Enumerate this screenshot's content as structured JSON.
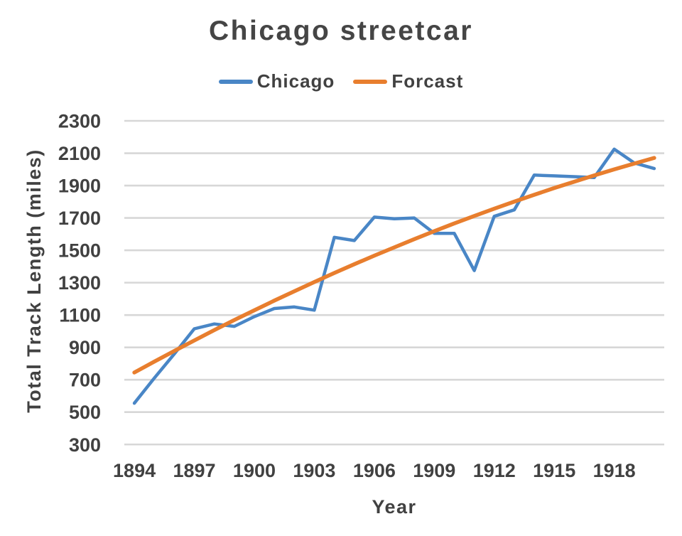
{
  "title": "Chicago streetcar",
  "legend": {
    "items": [
      {
        "label": "Chicago",
        "color": "#4986C6"
      },
      {
        "label": "Forcast",
        "color": "#E87E2E"
      }
    ]
  },
  "colors": {
    "background": "#ffffff",
    "gridline": "#D7D7D7",
    "text": "#414141",
    "title_text": "#454545",
    "chicago_line": "#4986C6",
    "forcast_line": "#E87E2E"
  },
  "chart_data": {
    "type": "line",
    "title": "Chicago streetcar",
    "xlabel": "Year",
    "ylabel": "Total Track Length (miles)",
    "x": [
      1894,
      1895,
      1896,
      1897,
      1898,
      1899,
      1900,
      1901,
      1902,
      1903,
      1904,
      1905,
      1906,
      1907,
      1908,
      1909,
      1910,
      1911,
      1912,
      1913,
      1914,
      1915,
      1916,
      1917,
      1918,
      1919,
      1920
    ],
    "series": [
      {
        "name": "Chicago",
        "color": "#4986C6",
        "stroke_width": 4.5,
        "values": [
          555,
          710,
          860,
          1015,
          1045,
          1030,
          1090,
          1140,
          1150,
          1130,
          1580,
          1560,
          1705,
          1695,
          1700,
          1605,
          1605,
          1375,
          1710,
          1750,
          1965,
          1960,
          1955,
          1950,
          2125,
          2040,
          2005
        ]
      },
      {
        "name": "Forcast",
        "color": "#E87E2E",
        "stroke_width": 5.5,
        "values": [
          745,
          812,
          878,
          943,
          1007,
          1069,
          1129,
          1189,
          1247,
          1304,
          1360,
          1414,
          1467,
          1518,
          1569,
          1618,
          1666,
          1712,
          1757,
          1801,
          1843,
          1885,
          1924,
          1963,
          2000,
          2036,
          2071
        ]
      }
    ],
    "ylim": [
      300,
      2300
    ],
    "yticks": [
      2300,
      2100,
      1900,
      1700,
      1500,
      1300,
      1100,
      900,
      700,
      500,
      300
    ],
    "xticks": [
      1894,
      1897,
      1900,
      1903,
      1906,
      1909,
      1912,
      1915,
      1918
    ],
    "grid": true,
    "gridlines": "horizontal-only",
    "legend_position": "top"
  }
}
